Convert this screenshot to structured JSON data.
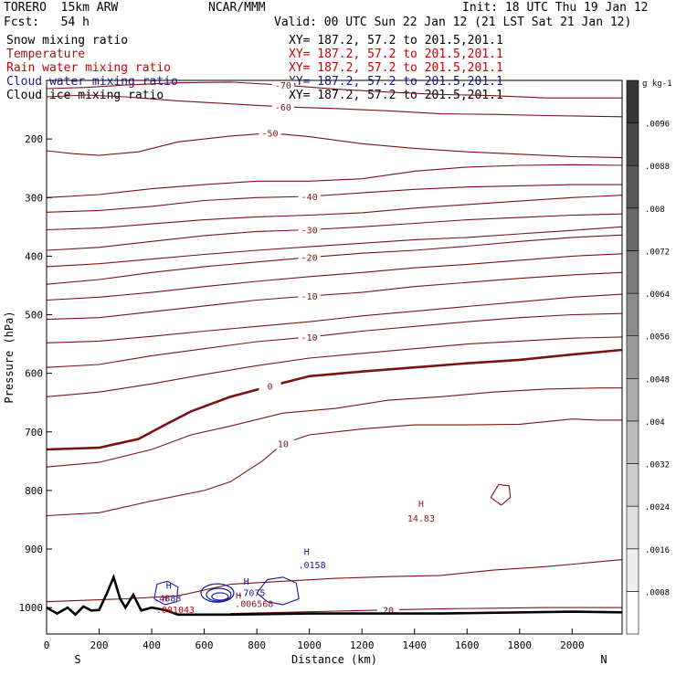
{
  "header": {
    "model": "TORERO  15km ARW",
    "org": "NCAR/MMM",
    "init": "Init: 18 UTC Thu 19 Jan 12",
    "fcst": "Fcst:   54 h",
    "valid": "Valid: 00 UTC Sun 22 Jan 12 (21 LST Sat 21 Jan 12)"
  },
  "fields": [
    {
      "name": "Snow mixing ratio",
      "xy": "XY= 187.2, 57.2 to 201.5,201.1",
      "color": "#000000"
    },
    {
      "name": "Temperature",
      "xy": "XY= 187.2, 57.2 to 201.5,201.1",
      "color": "#8b1a1a"
    },
    {
      "name": "Rain water mixing ratio",
      "xy": "XY= 187.2, 57.2 to 201.5,201.1",
      "color": "#cc0000"
    },
    {
      "name": "Cloud water mixing ratio",
      "xy": "XY= 187.2, 57.2 to 201.5,201.1",
      "color": "#1a1aa0"
    },
    {
      "name": "Cloud ice mixing ratio",
      "xy": "XY= 187.2, 57.2 to 201.5,201.1",
      "color": "#000000"
    }
  ],
  "chart_data": {
    "type": "cross-section contour",
    "xlabel": "Distance (km)",
    "ylabel": "Pressure (hPa)",
    "xlim": [
      0,
      2190
    ],
    "ylim": [
      1045,
      100
    ],
    "x_ticks": [
      0,
      200,
      400,
      600,
      800,
      1000,
      1200,
      1400,
      1600,
      1800,
      2000
    ],
    "y_ticks": [
      200,
      300,
      400,
      500,
      600,
      700,
      800,
      900,
      1000
    ],
    "x_end_labels": {
      "left": "S",
      "right": "N"
    },
    "colorbar": {
      "units": "g kg-1",
      "ticks": [
        ".0008",
        ".0016",
        ".0024",
        ".0032",
        ".004",
        ".0048",
        ".0056",
        ".0064",
        ".0072",
        ".008",
        ".0088",
        ".0096"
      ]
    },
    "temperature_contours": [
      {
        "level": -70,
        "label": "-70",
        "points": [
          [
            0,
            114
          ],
          [
            150,
            112
          ],
          [
            300,
            108
          ],
          [
            500,
            104
          ],
          [
            700,
            103
          ],
          [
            900,
            108
          ],
          [
            1100,
            115
          ],
          [
            1300,
            120
          ],
          [
            1500,
            124
          ],
          [
            1700,
            126
          ],
          [
            1900,
            130
          ],
          [
            2190,
            130
          ]
        ]
      },
      {
        "level": -60,
        "label": "-60",
        "points": [
          [
            0,
            128
          ],
          [
            150,
            125
          ],
          [
            300,
            128
          ],
          [
            500,
            135
          ],
          [
            700,
            140
          ],
          [
            900,
            145
          ],
          [
            1100,
            148
          ],
          [
            1300,
            152
          ],
          [
            1500,
            157
          ],
          [
            1700,
            158
          ],
          [
            1900,
            160
          ],
          [
            2190,
            162
          ]
        ]
      },
      {
        "level": -50,
        "label": "-50",
        "points": [
          [
            0,
            220
          ],
          [
            100,
            225
          ],
          [
            200,
            228
          ],
          [
            350,
            222
          ],
          [
            500,
            205
          ],
          [
            700,
            195
          ],
          [
            850,
            190
          ],
          [
            1000,
            196
          ],
          [
            1200,
            208
          ],
          [
            1400,
            216
          ],
          [
            1600,
            222
          ],
          [
            1800,
            226
          ],
          [
            2000,
            230
          ],
          [
            2190,
            232
          ]
        ]
      },
      {
        "level": -45,
        "points": [
          [
            0,
            300
          ],
          [
            200,
            295
          ],
          [
            400,
            285
          ],
          [
            600,
            278
          ],
          [
            800,
            272
          ],
          [
            1000,
            272
          ],
          [
            1200,
            268
          ],
          [
            1400,
            255
          ],
          [
            1600,
            248
          ],
          [
            1800,
            245
          ],
          [
            2000,
            244
          ],
          [
            2190,
            245
          ]
        ]
      },
      {
        "level": -40,
        "label": "-40",
        "points": [
          [
            0,
            325
          ],
          [
            200,
            322
          ],
          [
            400,
            315
          ],
          [
            600,
            305
          ],
          [
            800,
            300
          ],
          [
            1000,
            298
          ],
          [
            1200,
            292
          ],
          [
            1400,
            286
          ],
          [
            1600,
            282
          ],
          [
            1800,
            280
          ],
          [
            2000,
            278
          ],
          [
            2190,
            278
          ]
        ]
      },
      {
        "level": -35,
        "points": [
          [
            0,
            355
          ],
          [
            200,
            352
          ],
          [
            400,
            345
          ],
          [
            600,
            338
          ],
          [
            800,
            333
          ],
          [
            1000,
            330
          ],
          [
            1200,
            326
          ],
          [
            1400,
            318
          ],
          [
            1600,
            312
          ],
          [
            1800,
            306
          ],
          [
            2000,
            300
          ],
          [
            2190,
            296
          ]
        ]
      },
      {
        "level": -30,
        "label": "-30",
        "points": [
          [
            0,
            390
          ],
          [
            200,
            385
          ],
          [
            400,
            375
          ],
          [
            600,
            365
          ],
          [
            800,
            358
          ],
          [
            1000,
            355
          ],
          [
            1200,
            350
          ],
          [
            1400,
            344
          ],
          [
            1600,
            338
          ],
          [
            1800,
            334
          ],
          [
            2000,
            330
          ],
          [
            2190,
            328
          ]
        ]
      },
      {
        "level": -25,
        "points": [
          [
            0,
            418
          ],
          [
            200,
            413
          ],
          [
            400,
            405
          ],
          [
            600,
            397
          ],
          [
            800,
            390
          ],
          [
            1000,
            384
          ],
          [
            1200,
            378
          ],
          [
            1400,
            372
          ],
          [
            1600,
            368
          ],
          [
            1800,
            362
          ],
          [
            2000,
            356
          ],
          [
            2190,
            350
          ]
        ]
      },
      {
        "level": -20,
        "label": "-20",
        "points": [
          [
            0,
            448
          ],
          [
            200,
            440
          ],
          [
            400,
            428
          ],
          [
            600,
            418
          ],
          [
            800,
            410
          ],
          [
            1000,
            402
          ],
          [
            1200,
            395
          ],
          [
            1400,
            390
          ],
          [
            1600,
            383
          ],
          [
            1800,
            375
          ],
          [
            2000,
            368
          ],
          [
            2190,
            364
          ]
        ]
      },
      {
        "level": -15,
        "points": [
          [
            0,
            475
          ],
          [
            200,
            470
          ],
          [
            400,
            462
          ],
          [
            600,
            452
          ],
          [
            800,
            443
          ],
          [
            1000,
            435
          ],
          [
            1200,
            428
          ],
          [
            1400,
            420
          ],
          [
            1600,
            414
          ],
          [
            1800,
            407
          ],
          [
            2000,
            400
          ],
          [
            2190,
            396
          ]
        ]
      },
      {
        "level": -10,
        "label": "-10",
        "points": [
          [
            0,
            508
          ],
          [
            200,
            505
          ],
          [
            400,
            495
          ],
          [
            600,
            485
          ],
          [
            800,
            475
          ],
          [
            1000,
            468
          ],
          [
            1200,
            462
          ],
          [
            1400,
            452
          ],
          [
            1600,
            445
          ],
          [
            1800,
            438
          ],
          [
            2000,
            432
          ],
          [
            2190,
            428
          ]
        ]
      },
      {
        "level": -5,
        "points": [
          [
            0,
            548
          ],
          [
            200,
            545
          ],
          [
            400,
            537
          ],
          [
            600,
            528
          ],
          [
            800,
            520
          ],
          [
            1000,
            512
          ],
          [
            1200,
            502
          ],
          [
            1400,
            494
          ],
          [
            1600,
            486
          ],
          [
            1800,
            478
          ],
          [
            2000,
            470
          ],
          [
            2190,
            465
          ]
        ]
      },
      {
        "level": -10,
        "label": "-10",
        "points": [
          [
            0,
            590
          ],
          [
            200,
            585
          ],
          [
            400,
            570
          ],
          [
            600,
            558
          ],
          [
            800,
            546
          ],
          [
            1000,
            538
          ],
          [
            1200,
            528
          ],
          [
            1400,
            520
          ],
          [
            1600,
            512
          ],
          [
            1800,
            505
          ],
          [
            2000,
            500
          ],
          [
            2190,
            498
          ]
        ]
      },
      {
        "level": -5,
        "points": [
          [
            0,
            640
          ],
          [
            200,
            632
          ],
          [
            400,
            618
          ],
          [
            600,
            602
          ],
          [
            800,
            587
          ],
          [
            1000,
            574
          ],
          [
            1200,
            566
          ],
          [
            1400,
            558
          ],
          [
            1600,
            550
          ],
          [
            1800,
            545
          ],
          [
            2000,
            540
          ],
          [
            2190,
            538
          ]
        ]
      },
      {
        "level": 0,
        "label": "0",
        "bold": true,
        "points": [
          [
            0,
            730
          ],
          [
            200,
            727
          ],
          [
            350,
            712
          ],
          [
            450,
            688
          ],
          [
            550,
            665
          ],
          [
            700,
            640
          ],
          [
            850,
            622
          ],
          [
            1000,
            605
          ],
          [
            1200,
            597
          ],
          [
            1400,
            590
          ],
          [
            1600,
            583
          ],
          [
            1800,
            577
          ],
          [
            2000,
            568
          ],
          [
            2190,
            560
          ]
        ]
      },
      {
        "level": 5,
        "points": [
          [
            0,
            760
          ],
          [
            200,
            752
          ],
          [
            400,
            730
          ],
          [
            550,
            705
          ],
          [
            700,
            690
          ],
          [
            900,
            668
          ],
          [
            1100,
            660
          ],
          [
            1300,
            646
          ],
          [
            1500,
            640
          ],
          [
            1700,
            632
          ],
          [
            1900,
            627
          ],
          [
            2100,
            625
          ],
          [
            2190,
            625
          ]
        ]
      },
      {
        "level": 10,
        "label": "10",
        "points": [
          [
            0,
            843
          ],
          [
            200,
            838
          ],
          [
            400,
            818
          ],
          [
            600,
            800
          ],
          [
            700,
            785
          ],
          [
            820,
            750
          ],
          [
            900,
            720
          ],
          [
            1000,
            705
          ],
          [
            1200,
            695
          ],
          [
            1400,
            688
          ],
          [
            1600,
            688
          ],
          [
            1800,
            687
          ],
          [
            2000,
            678
          ],
          [
            2100,
            680
          ],
          [
            2190,
            680
          ]
        ]
      },
      {
        "level": 20,
        "label": "20",
        "points": [
          [
            700,
            1010
          ],
          [
            900,
            1008
          ],
          [
            1100,
            1006
          ],
          [
            1300,
            1004
          ],
          [
            1500,
            1002
          ],
          [
            1700,
            1001
          ],
          [
            1900,
            1000
          ],
          [
            2190,
            1000
          ]
        ]
      },
      {
        "level": 15,
        "points": [
          [
            0,
            990
          ],
          [
            300,
            985
          ],
          [
            500,
            980
          ],
          [
            700,
            960
          ],
          [
            900,
            955
          ],
          [
            1100,
            950
          ],
          [
            1300,
            947
          ],
          [
            1500,
            945
          ],
          [
            1700,
            936
          ],
          [
            1900,
            930
          ],
          [
            2190,
            918
          ]
        ]
      }
    ],
    "terrain_surface": [
      [
        0,
        1000
      ],
      [
        40,
        1010
      ],
      [
        80,
        1000
      ],
      [
        110,
        1012
      ],
      [
        140,
        998
      ],
      [
        170,
        1005
      ],
      [
        200,
        1004
      ],
      [
        230,
        975
      ],
      [
        255,
        948
      ],
      [
        280,
        985
      ],
      [
        300,
        1000
      ],
      [
        330,
        978
      ],
      [
        360,
        1005
      ],
      [
        400,
        1000
      ],
      [
        450,
        1004
      ],
      [
        500,
        1012
      ],
      [
        700,
        1012
      ],
      [
        1000,
        1010
      ],
      [
        1500,
        1010
      ],
      [
        2000,
        1007
      ],
      [
        2190,
        1008
      ]
    ],
    "annotations": [
      {
        "text": "H",
        "x": 1425,
        "p": 828,
        "color": "#8b1a1a"
      },
      {
        "text": "14.83",
        "x": 1425,
        "p": 853,
        "color": "#8b1a1a"
      },
      {
        "text": "H",
        "x": 990,
        "p": 910,
        "color": "#1a1aa0"
      },
      {
        "text": ".0158",
        "x": 1010,
        "p": 933,
        "color": "#1a1aa0"
      },
      {
        "text": "H",
        "x": 465,
        "p": 968,
        "color": "#1a1aa0"
      },
      {
        "text": ".4883",
        "x": 460,
        "p": 990,
        "color": "#1a1aa0"
      },
      {
        "text": "H",
        "x": 450,
        "p": 990,
        "color": "#cc0000"
      },
      {
        "text": ".001043",
        "x": 490,
        "p": 1009,
        "color": "#cc0000"
      },
      {
        "text": "H",
        "x": 760,
        "p": 961,
        "color": "#1a1aa0"
      },
      {
        "text": ".7075",
        "x": 780,
        "p": 980,
        "color": "#1a1aa0"
      },
      {
        "text": "H",
        "x": 730,
        "p": 985,
        "color": "#8b1a1a"
      },
      {
        "text": ".006568",
        "x": 790,
        "p": 999,
        "color": "#8b1a1a"
      }
    ]
  }
}
